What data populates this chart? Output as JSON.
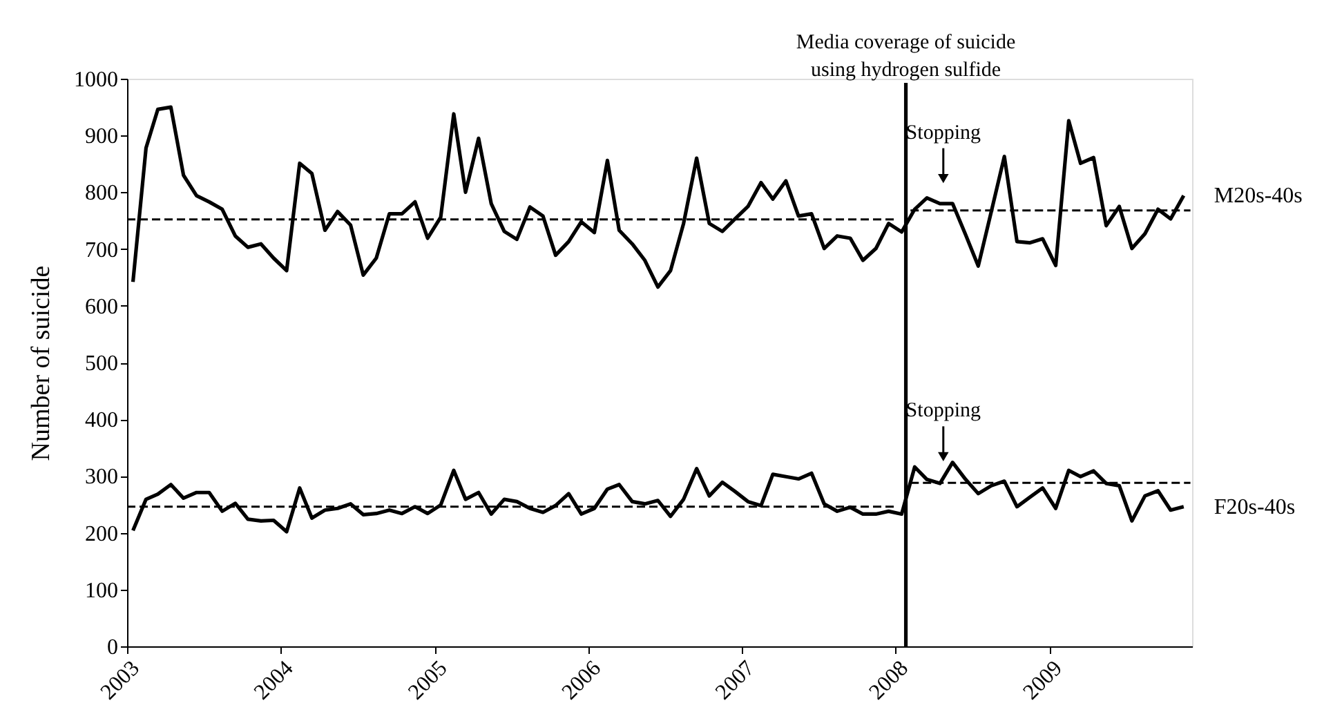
{
  "chart_data": {
    "type": "line",
    "ylabel": "Number of suicide",
    "x": [
      "2003-01-15",
      "2003-02-15",
      "2003-03-15",
      "2003-04-15",
      "2003-05-15",
      "2003-06-15",
      "2003-07-15",
      "2003-08-15",
      "2003-09-15",
      "2003-10-15",
      "2003-11-15",
      "2003-12-15",
      "2004-01-15",
      "2004-02-15",
      "2004-03-15",
      "2004-04-15",
      "2004-05-15",
      "2004-06-15",
      "2004-07-15",
      "2004-08-15",
      "2004-09-15",
      "2004-10-15",
      "2004-11-15",
      "2004-12-15",
      "2005-01-15",
      "2005-02-15",
      "2005-03-15",
      "2005-04-15",
      "2005-05-15",
      "2005-06-15",
      "2005-07-15",
      "2005-08-15",
      "2005-09-15",
      "2005-10-15",
      "2005-11-15",
      "2005-12-15",
      "2006-01-15",
      "2006-02-15",
      "2006-03-15",
      "2006-04-15",
      "2006-05-15",
      "2006-06-15",
      "2006-07-15",
      "2006-08-15",
      "2006-09-15",
      "2006-10-15",
      "2006-11-15",
      "2006-12-15",
      "2007-01-15",
      "2007-02-15",
      "2007-03-15",
      "2007-04-15",
      "2007-05-15",
      "2007-06-15",
      "2007-07-15",
      "2007-08-15",
      "2007-09-15",
      "2007-10-15",
      "2007-11-15",
      "2007-12-15",
      "2008-01-15",
      "2008-02-15",
      "2008-03-15",
      "2008-04-15",
      "2008-05-15",
      "2008-06-15",
      "2008-07-15",
      "2008-08-15",
      "2008-09-15",
      "2008-10-15",
      "2008-11-15",
      "2008-12-15",
      "2009-01-15",
      "2009-02-15",
      "2009-03-15",
      "2009-04-15",
      "2009-05-15",
      "2009-06-15",
      "2009-07-15",
      "2009-08-15",
      "2009-09-15",
      "2009-10-15",
      "2009-11-15"
    ],
    "series": [
      {
        "name": "M20s-40s",
        "color": "#000000",
        "values": [
          642,
          878,
          946,
          950,
          830,
          794,
          783,
          770,
          723,
          703,
          709,
          684,
          662,
          851,
          833,
          733,
          766,
          742,
          654,
          684,
          762,
          762,
          783,
          719,
          756,
          938,
          800,
          895,
          780,
          731,
          717,
          774,
          758,
          689,
          713,
          748,
          729,
          856,
          733,
          709,
          680,
          633,
          662,
          745,
          860,
          745,
          731,
          753,
          775,
          817,
          788,
          820,
          758,
          762,
          701,
          723,
          719,
          680,
          701,
          745,
          730,
          770,
          790,
          780,
          780,
          725,
          670,
          766,
          863,
          713,
          711,
          718,
          671,
          926,
          851,
          861,
          741,
          775,
          701,
          727,
          770,
          753,
          794
        ]
      },
      {
        "name": "F20s-40s",
        "color": "#000000",
        "values": [
          204,
          259,
          268,
          285,
          261,
          271,
          271,
          238,
          252,
          224,
          221,
          222,
          202,
          279,
          226,
          240,
          243,
          251,
          232,
          234,
          240,
          234,
          246,
          234,
          249,
          310,
          259,
          271,
          233,
          259,
          255,
          243,
          236,
          248,
          269,
          233,
          243,
          277,
          285,
          255,
          251,
          257,
          229,
          259,
          313,
          265,
          289,
          273,
          255,
          248,
          303,
          299,
          295,
          305,
          251,
          238,
          245,
          233,
          233,
          238,
          233,
          316,
          294,
          287,
          324,
          294,
          269,
          283,
          291,
          246,
          263,
          279,
          243,
          310,
          299,
          309,
          287,
          283,
          221,
          265,
          274,
          240,
          246
        ]
      },
      {
        "type": "line",
        "line_style": "dashed",
        "color": "#000000",
        "x": [
          "2003-01-01",
          "2007-12-30"
        ],
        "values": [
          752,
          752
        ]
      },
      {
        "type": "line",
        "line_style": "dashed",
        "color": "#000000",
        "x": [
          "2008-02-05",
          "2009-12-01"
        ],
        "values": [
          768,
          768
        ]
      },
      {
        "type": "line",
        "line_style": "dashed",
        "color": "#000000",
        "x": [
          "2003-01-01",
          "2007-12-30"
        ],
        "values": [
          246,
          246
        ]
      },
      {
        "type": "line",
        "line_style": "dashed",
        "color": "#000000",
        "x": [
          "2008-02-05",
          "2009-12-01"
        ],
        "values": [
          288,
          288
        ]
      }
    ],
    "xlim": [
      "2003-01-01",
      "2009-12-05"
    ],
    "xticks": [
      "2003",
      "2004",
      "2005",
      "2006",
      "2007",
      "2008",
      "2009"
    ],
    "ylim": [
      0,
      1000
    ],
    "yticks": [
      0,
      100,
      200,
      300,
      400,
      500,
      600,
      700,
      800,
      900,
      1000
    ],
    "ref_lines": [
      {
        "axis": "x",
        "value": "2008-01-25",
        "label": "Media coverage of suicide\nusing hydrogen sulfide",
        "color": "#000000"
      }
    ],
    "annotations": [
      {
        "text": "Stopping",
        "x": "2008-04-23",
        "y": 790
      },
      {
        "text": "Stopping",
        "x": "2008-04-23",
        "y": 300
      }
    ]
  }
}
